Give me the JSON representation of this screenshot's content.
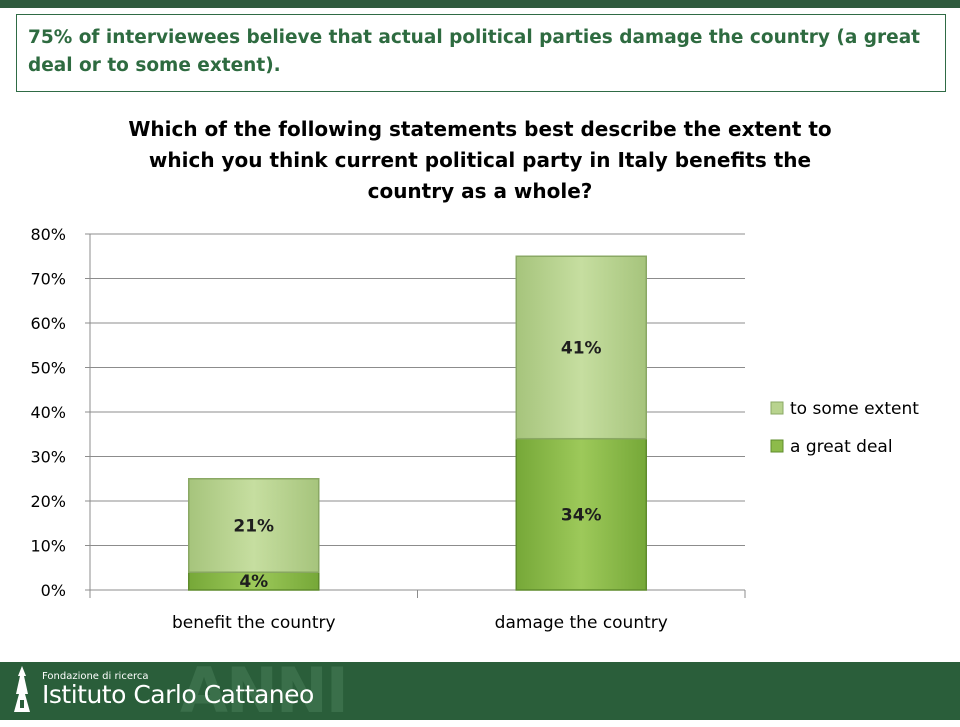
{
  "headline": "75% of interviewees believe that actual political parties damage the country (a great deal or to some extent).",
  "footer": {
    "org_small": "Fondazione di ricerca",
    "org_name": "Istituto Carlo Cattaneo",
    "watermark": "ANNI"
  },
  "colors": {
    "accent_green": "#2e6b40",
    "great_deal": "#8dbb4a",
    "some_extent": "#b8d38e",
    "footer": "#2a5e3a"
  },
  "chart_data": {
    "type": "bar",
    "stacked": true,
    "title": "Which of the following statements best describe the extent to which you think current political party  in Italy benefits the country as a whole?",
    "categories": [
      "benefit the country",
      "damage the country"
    ],
    "series": [
      {
        "name": "a great deal",
        "values": [
          4,
          34
        ],
        "labels": [
          "4%",
          "34%"
        ]
      },
      {
        "name": "to some extent",
        "values": [
          21,
          41
        ],
        "labels": [
          "21%",
          "41%"
        ]
      }
    ],
    "ylim": [
      0,
      80
    ],
    "yticks": [
      0,
      10,
      20,
      30,
      40,
      50,
      60,
      70,
      80
    ],
    "ytick_labels": [
      "0%",
      "10%",
      "20%",
      "30%",
      "40%",
      "50%",
      "60%",
      "70%",
      "80%"
    ],
    "grid": true,
    "legend_position": "right",
    "legend_order": [
      "to some extent",
      "a great deal"
    ],
    "xlabel": "",
    "ylabel": ""
  }
}
